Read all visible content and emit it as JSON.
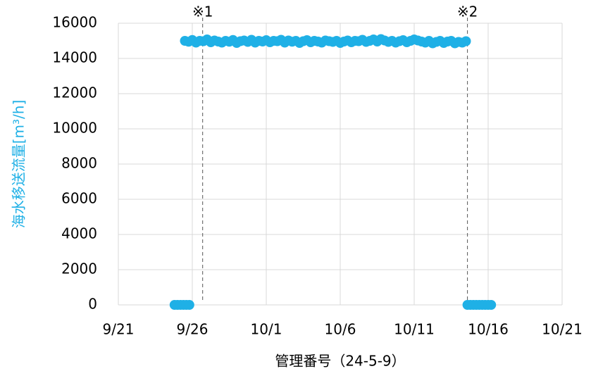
{
  "chart_data": {
    "type": "scatter",
    "xlabel": "管理番号（24-5-9）",
    "ylabel": "海水移送流量[m³/h]",
    "color": "#1fb0e6",
    "xlim": [
      265,
      295
    ],
    "xticks": [
      {
        "value": 265,
        "label": "9/21"
      },
      {
        "value": 270,
        "label": "9/26"
      },
      {
        "value": 275,
        "label": "10/1"
      },
      {
        "value": 280,
        "label": "10/6"
      },
      {
        "value": 285,
        "label": "10/11"
      },
      {
        "value": 290,
        "label": "10/16"
      },
      {
        "value": 295,
        "label": "10/21"
      }
    ],
    "ylim": [
      0,
      16000
    ],
    "yticks": [
      0,
      2000,
      4000,
      6000,
      8000,
      10000,
      12000,
      14000,
      16000
    ],
    "grid": true,
    "annotations": [
      {
        "label": "※1",
        "x": 270.7
      },
      {
        "label": "※2",
        "x": 288.6
      }
    ],
    "x": [
      268.8,
      269.0,
      269.2,
      269.4,
      269.6,
      269.8,
      269.5,
      269.75,
      270,
      270.25,
      270.5,
      270.75,
      271,
      271.25,
      271.5,
      271.75,
      272,
      272.25,
      272.5,
      272.75,
      273,
      273.25,
      273.5,
      273.75,
      274,
      274.25,
      274.5,
      274.75,
      275,
      275.25,
      275.5,
      275.75,
      276,
      276.25,
      276.5,
      276.75,
      277,
      277.25,
      277.5,
      277.75,
      278,
      278.25,
      278.5,
      278.75,
      279,
      279.25,
      279.5,
      279.75,
      280,
      280.25,
      280.5,
      280.75,
      281,
      281.25,
      281.5,
      281.75,
      282,
      282.25,
      282.5,
      282.75,
      283,
      283.25,
      283.5,
      283.75,
      284,
      284.25,
      284.5,
      284.75,
      285,
      285.25,
      285.5,
      285.75,
      286,
      286.25,
      286.5,
      286.75,
      287,
      287.25,
      287.5,
      287.75,
      288,
      288.25,
      288.5,
      288.6,
      288.8,
      289.0,
      289.2,
      289.4,
      289.6,
      289.8,
      290.0,
      290.2
    ],
    "values": [
      0,
      0,
      0,
      0,
      0,
      0,
      15000,
      14950,
      15050,
      14900,
      15000,
      14980,
      15080,
      14920,
      15020,
      14960,
      14900,
      15000,
      14950,
      15050,
      14880,
      14980,
      15020,
      14940,
      15060,
      14900,
      15000,
      14960,
      15040,
      14920,
      15000,
      14980,
      15060,
      14900,
      15020,
      14950,
      15000,
      14880,
      14980,
      15040,
      14920,
      15000,
      14960,
      14900,
      15020,
      14980,
      14940,
      15000,
      14880,
      14960,
      15020,
      14920,
      15000,
      14980,
      15060,
      14940,
      15000,
      15080,
      14960,
      15100,
      15020,
      14940,
      15000,
      14900,
      14980,
      15040,
      14920,
      15000,
      15080,
      15020,
      14960,
      14900,
      15000,
      14860,
      14940,
      15000,
      14880,
      14960,
      15000,
      14860,
      14940,
      14900,
      14980,
      0,
      0,
      0,
      0,
      0,
      0,
      0,
      0,
      0
    ]
  }
}
